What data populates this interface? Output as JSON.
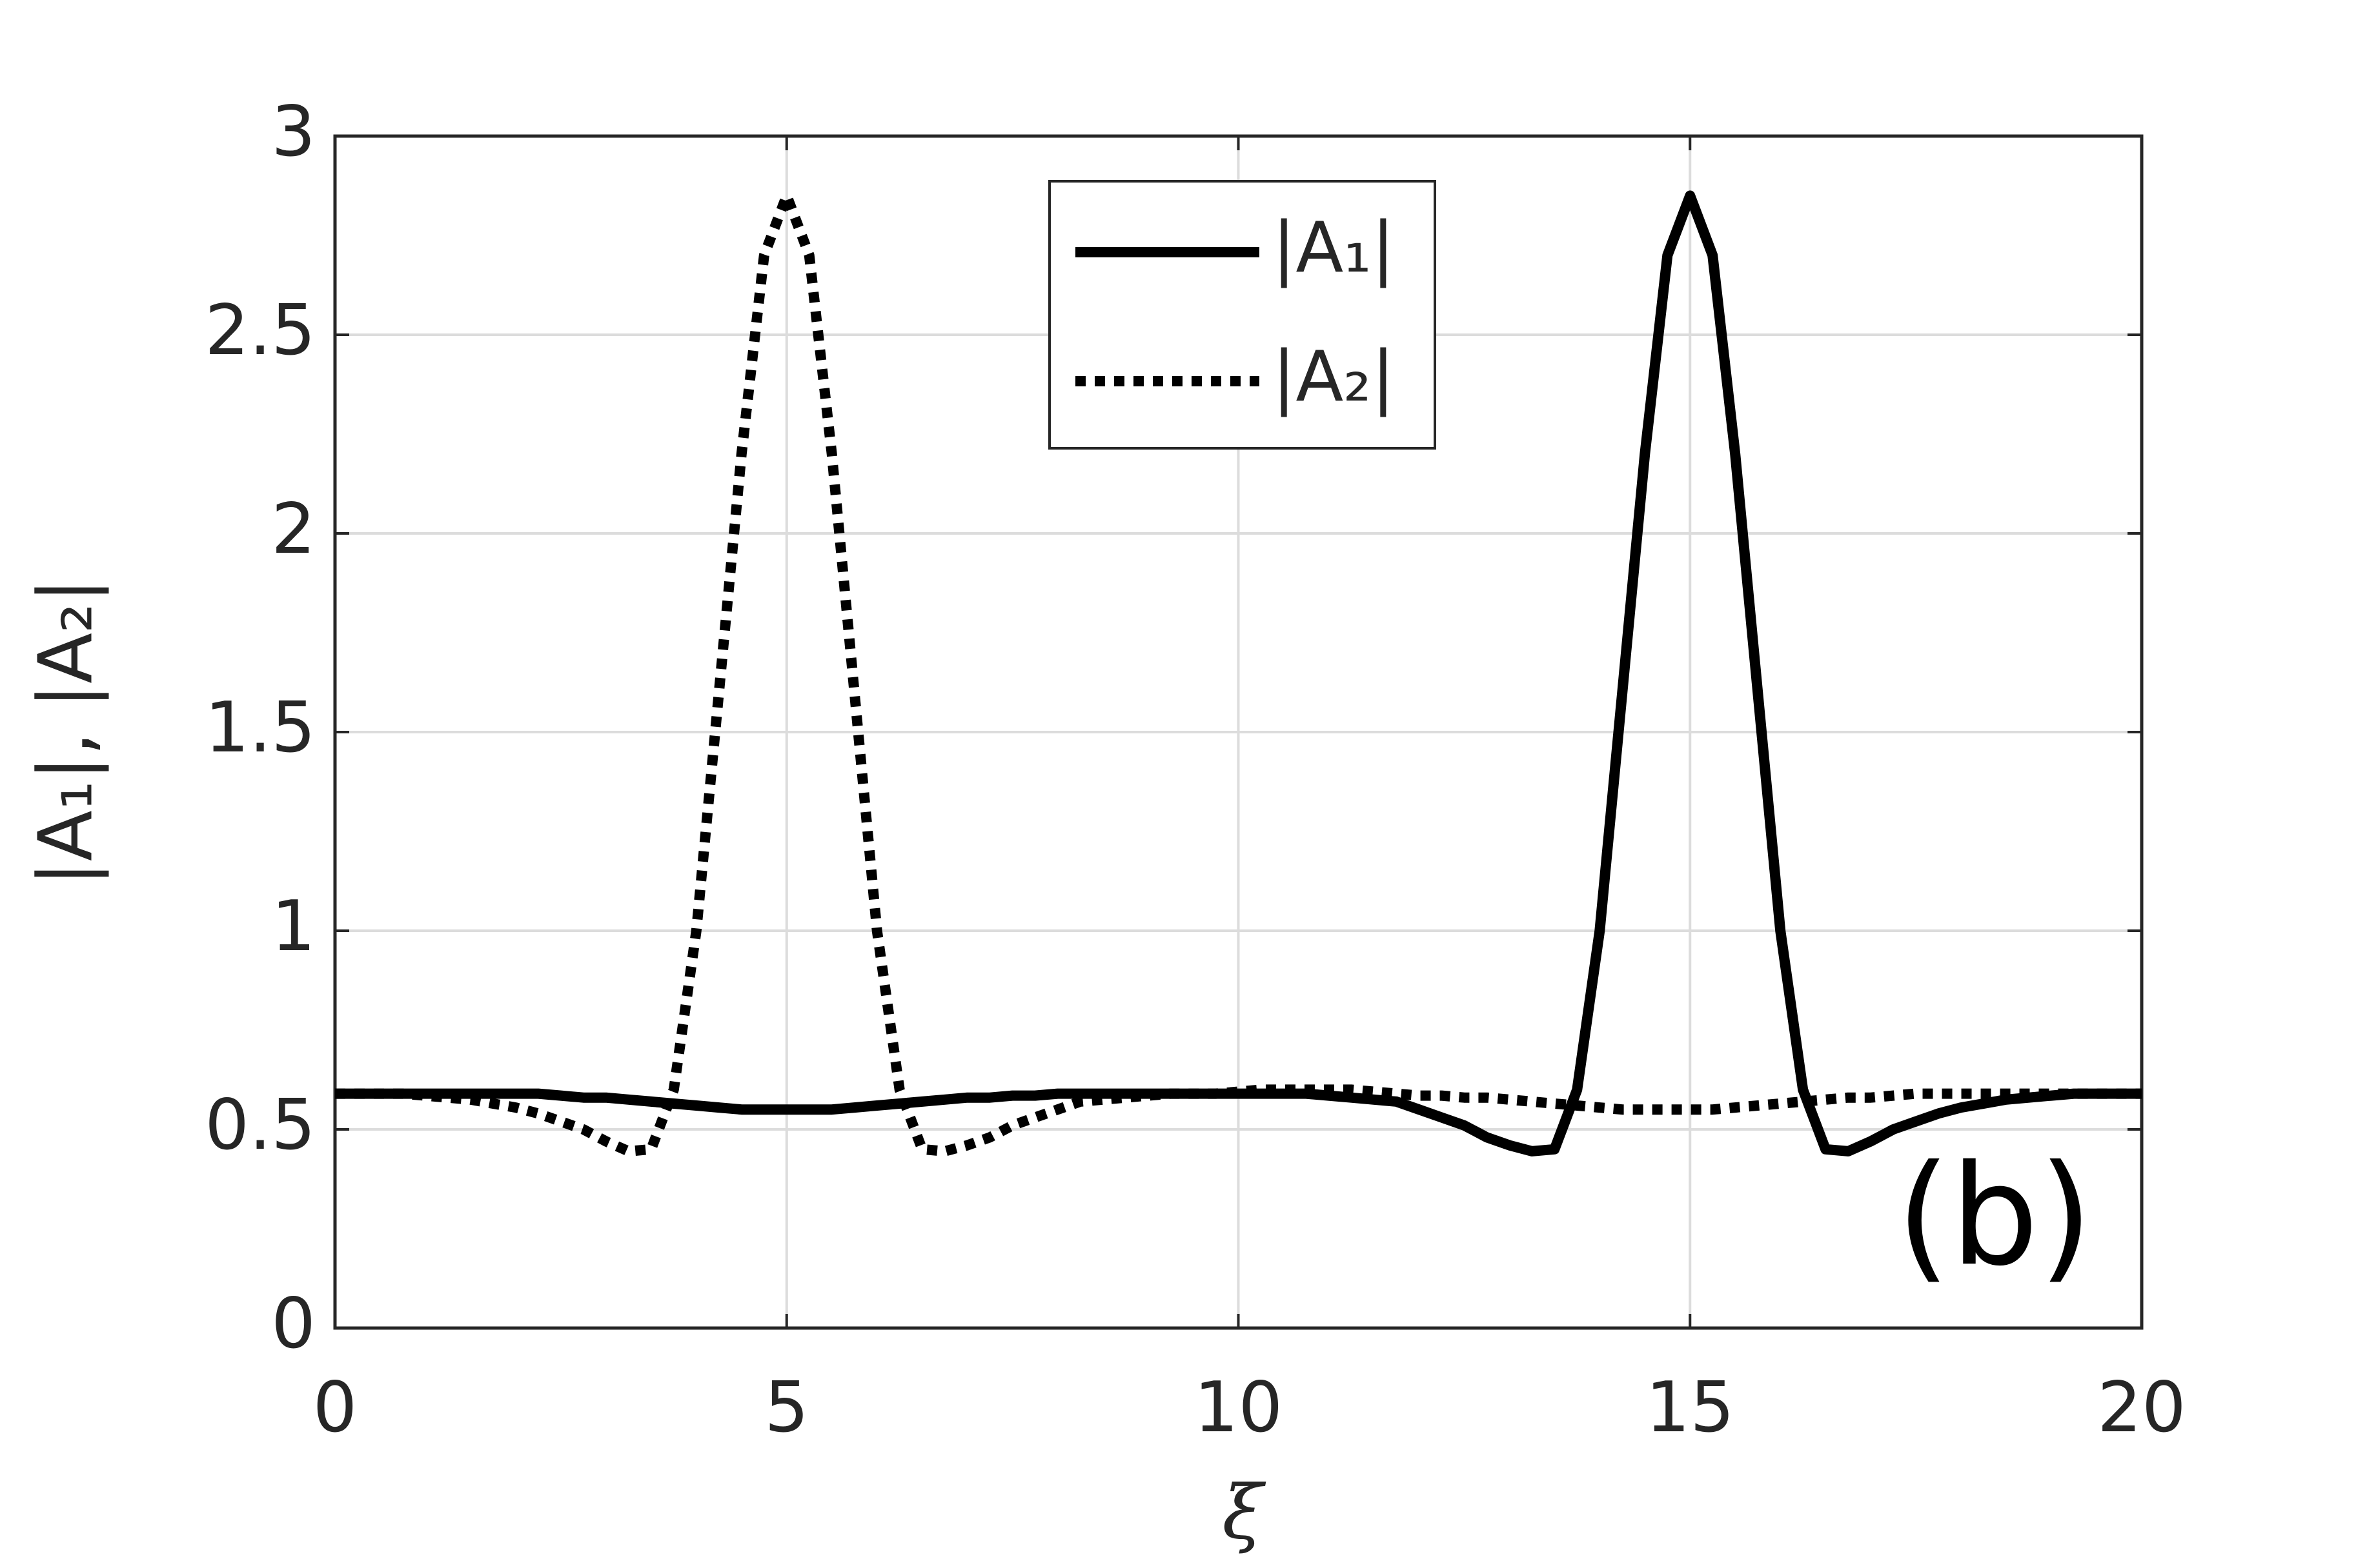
{
  "chart_data": {
    "type": "line",
    "xlabel": "ξ",
    "ylabel": "|A₁|, |A₂|",
    "annotation": "(b)",
    "x": [
      0,
      0.25,
      0.5,
      0.75,
      1,
      1.25,
      1.5,
      1.75,
      2,
      2.25,
      2.5,
      2.75,
      3,
      3.25,
      3.5,
      3.75,
      4,
      4.25,
      4.5,
      4.75,
      5,
      5.25,
      5.5,
      5.75,
      6,
      6.25,
      6.5,
      6.75,
      7,
      7.25,
      7.5,
      7.75,
      8,
      8.25,
      8.5,
      8.75,
      9,
      9.25,
      9.5,
      9.75,
      10,
      10.25,
      10.5,
      10.75,
      11,
      11.25,
      11.5,
      11.75,
      12,
      12.25,
      12.5,
      12.75,
      13,
      13.25,
      13.5,
      13.75,
      14,
      14.25,
      14.5,
      14.75,
      15,
      15.25,
      15.5,
      15.75,
      16,
      16.25,
      16.5,
      16.75,
      17,
      17.25,
      17.5,
      17.75,
      18,
      18.25,
      18.5,
      18.75,
      19,
      19.25,
      19.5,
      19.75,
      20
    ],
    "series": [
      {
        "name": "|A₁|",
        "color": "#000000",
        "dash": "solid",
        "values": [
          0.59,
          0.59,
          0.59,
          0.59,
          0.59,
          0.59,
          0.59,
          0.59,
          0.59,
          0.59,
          0.585,
          0.58,
          0.58,
          0.575,
          0.57,
          0.565,
          0.56,
          0.555,
          0.55,
          0.55,
          0.55,
          0.55,
          0.55,
          0.555,
          0.56,
          0.565,
          0.57,
          0.575,
          0.58,
          0.58,
          0.585,
          0.585,
          0.59,
          0.59,
          0.59,
          0.59,
          0.59,
          0.59,
          0.59,
          0.59,
          0.59,
          0.59,
          0.59,
          0.59,
          0.585,
          0.58,
          0.575,
          0.57,
          0.55,
          0.53,
          0.51,
          0.48,
          0.46,
          0.445,
          0.45,
          0.6,
          1.0,
          1.6,
          2.2,
          2.7,
          2.85,
          2.7,
          2.2,
          1.6,
          1.0,
          0.6,
          0.45,
          0.445,
          0.47,
          0.5,
          0.52,
          0.54,
          0.555,
          0.565,
          0.575,
          0.58,
          0.585,
          0.59,
          0.59,
          0.59,
          0.59
        ]
      },
      {
        "name": "|A₂|",
        "color": "#000000",
        "dash": "dotted",
        "values": [
          0.59,
          0.59,
          0.59,
          0.59,
          0.585,
          0.58,
          0.575,
          0.565,
          0.555,
          0.54,
          0.52,
          0.5,
          0.47,
          0.445,
          0.45,
          0.6,
          1.0,
          1.6,
          2.2,
          2.7,
          2.85,
          2.7,
          2.2,
          1.6,
          1.0,
          0.6,
          0.45,
          0.445,
          0.46,
          0.48,
          0.51,
          0.53,
          0.55,
          0.57,
          0.575,
          0.58,
          0.585,
          0.59,
          0.59,
          0.59,
          0.595,
          0.6,
          0.6,
          0.6,
          0.6,
          0.6,
          0.595,
          0.59,
          0.585,
          0.585,
          0.58,
          0.58,
          0.575,
          0.57,
          0.565,
          0.56,
          0.555,
          0.55,
          0.55,
          0.55,
          0.55,
          0.55,
          0.555,
          0.56,
          0.565,
          0.57,
          0.575,
          0.58,
          0.58,
          0.585,
          0.59,
          0.59,
          0.59,
          0.59,
          0.59,
          0.59,
          0.59,
          0.59,
          0.59,
          0.59,
          0.59
        ]
      }
    ],
    "xlim": [
      0,
      20
    ],
    "xticks": [
      0,
      5,
      10,
      15,
      20
    ],
    "ylim": [
      0,
      3
    ],
    "yticks": [
      0,
      0.5,
      1,
      1.5,
      2,
      2.5,
      3
    ],
    "grid": true,
    "legend": "top-center"
  }
}
